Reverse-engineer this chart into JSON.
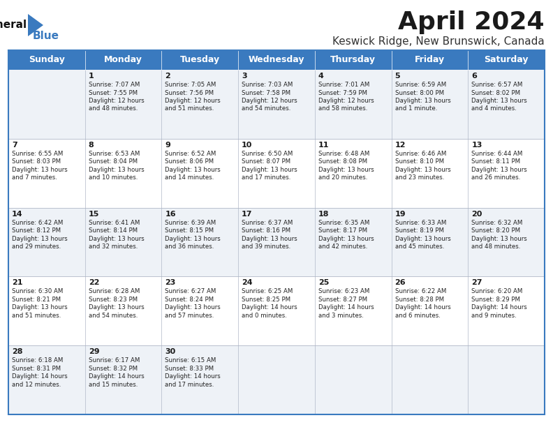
{
  "title": "April 2024",
  "subtitle": "Keswick Ridge, New Brunswick, Canada",
  "header_color": "#3a7abf",
  "header_text_color": "#ffffff",
  "bg_color": "#ffffff",
  "row_alt_color": "#eef2f7",
  "row_color": "#ffffff",
  "border_color": "#3a7abf",
  "inner_border_color": "#b0b8c8",
  "days_of_week": [
    "Sunday",
    "Monday",
    "Tuesday",
    "Wednesday",
    "Thursday",
    "Friday",
    "Saturday"
  ],
  "logo_general_color": "#111111",
  "logo_blue_color": "#3a7abf",
  "logo_triangle_color": "#3a7abf",
  "title_fontsize": 26,
  "subtitle_fontsize": 11,
  "header_fontsize": 9,
  "day_num_fontsize": 8,
  "cell_text_fontsize": 6.2,
  "cells": [
    [
      {
        "day": "",
        "sunrise": "",
        "sunset": "",
        "daylight": ""
      },
      {
        "day": "1",
        "sunrise": "7:07 AM",
        "sunset": "7:55 PM",
        "daylight": "12 hours\nand 48 minutes."
      },
      {
        "day": "2",
        "sunrise": "7:05 AM",
        "sunset": "7:56 PM",
        "daylight": "12 hours\nand 51 minutes."
      },
      {
        "day": "3",
        "sunrise": "7:03 AM",
        "sunset": "7:58 PM",
        "daylight": "12 hours\nand 54 minutes."
      },
      {
        "day": "4",
        "sunrise": "7:01 AM",
        "sunset": "7:59 PM",
        "daylight": "12 hours\nand 58 minutes."
      },
      {
        "day": "5",
        "sunrise": "6:59 AM",
        "sunset": "8:00 PM",
        "daylight": "13 hours\nand 1 minute."
      },
      {
        "day": "6",
        "sunrise": "6:57 AM",
        "sunset": "8:02 PM",
        "daylight": "13 hours\nand 4 minutes."
      }
    ],
    [
      {
        "day": "7",
        "sunrise": "6:55 AM",
        "sunset": "8:03 PM",
        "daylight": "13 hours\nand 7 minutes."
      },
      {
        "day": "8",
        "sunrise": "6:53 AM",
        "sunset": "8:04 PM",
        "daylight": "13 hours\nand 10 minutes."
      },
      {
        "day": "9",
        "sunrise": "6:52 AM",
        "sunset": "8:06 PM",
        "daylight": "13 hours\nand 14 minutes."
      },
      {
        "day": "10",
        "sunrise": "6:50 AM",
        "sunset": "8:07 PM",
        "daylight": "13 hours\nand 17 minutes."
      },
      {
        "day": "11",
        "sunrise": "6:48 AM",
        "sunset": "8:08 PM",
        "daylight": "13 hours\nand 20 minutes."
      },
      {
        "day": "12",
        "sunrise": "6:46 AM",
        "sunset": "8:10 PM",
        "daylight": "13 hours\nand 23 minutes."
      },
      {
        "day": "13",
        "sunrise": "6:44 AM",
        "sunset": "8:11 PM",
        "daylight": "13 hours\nand 26 minutes."
      }
    ],
    [
      {
        "day": "14",
        "sunrise": "6:42 AM",
        "sunset": "8:12 PM",
        "daylight": "13 hours\nand 29 minutes."
      },
      {
        "day": "15",
        "sunrise": "6:41 AM",
        "sunset": "8:14 PM",
        "daylight": "13 hours\nand 32 minutes."
      },
      {
        "day": "16",
        "sunrise": "6:39 AM",
        "sunset": "8:15 PM",
        "daylight": "13 hours\nand 36 minutes."
      },
      {
        "day": "17",
        "sunrise": "6:37 AM",
        "sunset": "8:16 PM",
        "daylight": "13 hours\nand 39 minutes."
      },
      {
        "day": "18",
        "sunrise": "6:35 AM",
        "sunset": "8:17 PM",
        "daylight": "13 hours\nand 42 minutes."
      },
      {
        "day": "19",
        "sunrise": "6:33 AM",
        "sunset": "8:19 PM",
        "daylight": "13 hours\nand 45 minutes."
      },
      {
        "day": "20",
        "sunrise": "6:32 AM",
        "sunset": "8:20 PM",
        "daylight": "13 hours\nand 48 minutes."
      }
    ],
    [
      {
        "day": "21",
        "sunrise": "6:30 AM",
        "sunset": "8:21 PM",
        "daylight": "13 hours\nand 51 minutes."
      },
      {
        "day": "22",
        "sunrise": "6:28 AM",
        "sunset": "8:23 PM",
        "daylight": "13 hours\nand 54 minutes."
      },
      {
        "day": "23",
        "sunrise": "6:27 AM",
        "sunset": "8:24 PM",
        "daylight": "13 hours\nand 57 minutes."
      },
      {
        "day": "24",
        "sunrise": "6:25 AM",
        "sunset": "8:25 PM",
        "daylight": "14 hours\nand 0 minutes."
      },
      {
        "day": "25",
        "sunrise": "6:23 AM",
        "sunset": "8:27 PM",
        "daylight": "14 hours\nand 3 minutes."
      },
      {
        "day": "26",
        "sunrise": "6:22 AM",
        "sunset": "8:28 PM",
        "daylight": "14 hours\nand 6 minutes."
      },
      {
        "day": "27",
        "sunrise": "6:20 AM",
        "sunset": "8:29 PM",
        "daylight": "14 hours\nand 9 minutes."
      }
    ],
    [
      {
        "day": "28",
        "sunrise": "6:18 AM",
        "sunset": "8:31 PM",
        "daylight": "14 hours\nand 12 minutes."
      },
      {
        "day": "29",
        "sunrise": "6:17 AM",
        "sunset": "8:32 PM",
        "daylight": "14 hours\nand 15 minutes."
      },
      {
        "day": "30",
        "sunrise": "6:15 AM",
        "sunset": "8:33 PM",
        "daylight": "14 hours\nand 17 minutes."
      },
      {
        "day": "",
        "sunrise": "",
        "sunset": "",
        "daylight": ""
      },
      {
        "day": "",
        "sunrise": "",
        "sunset": "",
        "daylight": ""
      },
      {
        "day": "",
        "sunrise": "",
        "sunset": "",
        "daylight": ""
      },
      {
        "day": "",
        "sunrise": "",
        "sunset": "",
        "daylight": ""
      }
    ]
  ]
}
